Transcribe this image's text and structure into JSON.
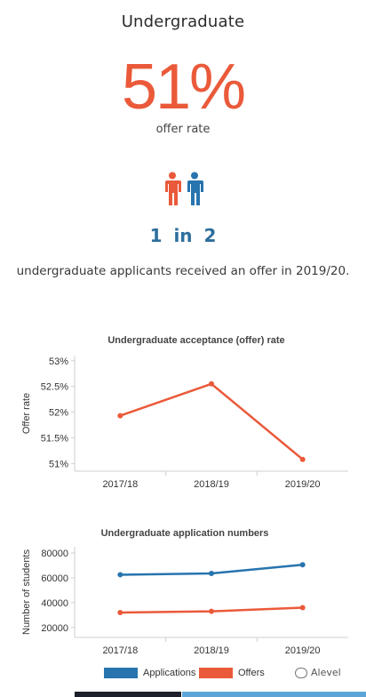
{
  "header": {
    "title": "Undergraduate",
    "rate": "51%",
    "rate_caption": "offer rate",
    "ratio_text": "1 in 2",
    "statement": "undergraduate applicants received an offer in 2019/20."
  },
  "icons": [
    "person-icon-orange",
    "person-icon-blue"
  ],
  "colors": {
    "accent": "#ea5a3a",
    "blue": "#2d6f9e",
    "applications": "#2774ae",
    "offers": "#ea5a3a"
  },
  "watermark": "Alevel",
  "chart_data": [
    {
      "type": "line",
      "title": "Undergraduate acceptance (offer) rate",
      "ylabel": "Offer rate",
      "xlabel": "",
      "categories": [
        "2017/18",
        "2018/19",
        "2019/20"
      ],
      "series": [
        {
          "values": [
            51.93,
            52.55,
            51.08
          ]
        }
      ],
      "yticks": [
        "53%",
        "52.5%",
        "52%",
        "51.5%",
        "51%"
      ],
      "ytick_values": [
        53,
        52.5,
        52,
        51.5,
        51
      ],
      "ylim": [
        50.85,
        53.1
      ],
      "grid": false
    },
    {
      "type": "line",
      "title": "Undergraduate application numbers",
      "ylabel": "Number of students",
      "xlabel": "",
      "categories": [
        "2017/18",
        "2018/19",
        "2019/20"
      ],
      "series": [
        {
          "name": "Applications",
          "values": [
            62500,
            63500,
            70500
          ]
        },
        {
          "name": "Offers",
          "values": [
            32000,
            33000,
            36000
          ]
        }
      ],
      "yticks": [
        "80000",
        "60000",
        "40000",
        "20000"
      ],
      "ytick_values": [
        80000,
        60000,
        40000,
        20000
      ],
      "ylim": [
        12000,
        85000
      ],
      "legend": "bottom",
      "grid": false
    }
  ]
}
